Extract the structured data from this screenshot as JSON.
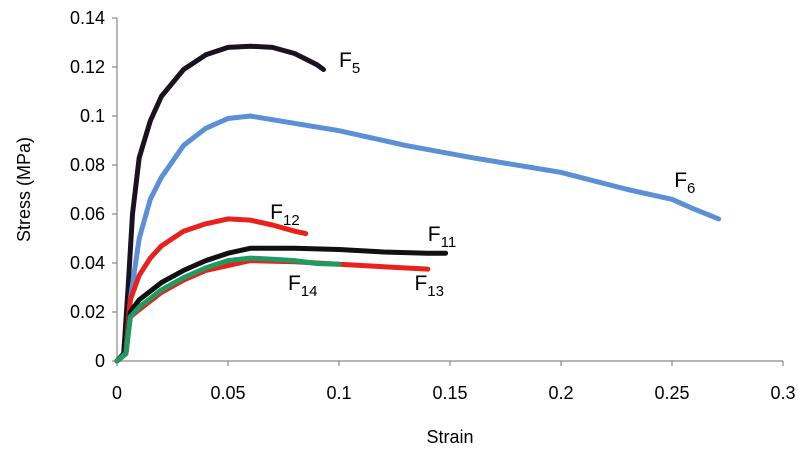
{
  "chart_data": {
    "type": "line",
    "title": "",
    "xlabel": "Strain",
    "ylabel": "Stress (MPa)",
    "xlim": [
      0,
      0.3
    ],
    "ylim": [
      0,
      0.14
    ],
    "xticks": [
      0,
      0.05,
      0.1,
      0.15,
      0.2,
      0.25,
      0.3
    ],
    "yticks": [
      0,
      0.02,
      0.04,
      0.06,
      0.08,
      0.1,
      0.12,
      0.14
    ],
    "xtick_labels": [
      "0",
      "0.05",
      "0.1",
      "0.15",
      "0.2",
      "0.25",
      "0.3"
    ],
    "ytick_labels": [
      "0",
      "0.02",
      "0.04",
      "0.06",
      "0.08",
      "0.1",
      "0.12",
      "0.14"
    ],
    "grid": false,
    "legend": "none",
    "series": [
      {
        "name": "F5",
        "label_main": "F",
        "label_sub": "5",
        "label_at": [
          0.1,
          0.12
        ],
        "color": "#1a1220",
        "x": [
          0,
          0.003,
          0.005,
          0.007,
          0.01,
          0.015,
          0.02,
          0.03,
          0.04,
          0.05,
          0.06,
          0.07,
          0.08,
          0.09,
          0.093
        ],
        "y": [
          0,
          0.003,
          0.03,
          0.06,
          0.083,
          0.098,
          0.108,
          0.119,
          0.125,
          0.128,
          0.1285,
          0.128,
          0.1255,
          0.121,
          0.119
        ]
      },
      {
        "name": "F6",
        "label_main": "F",
        "label_sub": "6",
        "label_at": [
          0.251,
          0.071
        ],
        "color": "#5b8fd6",
        "x": [
          0,
          0.004,
          0.006,
          0.01,
          0.015,
          0.02,
          0.03,
          0.04,
          0.05,
          0.06,
          0.07,
          0.1,
          0.13,
          0.16,
          0.2,
          0.23,
          0.25,
          0.26,
          0.271
        ],
        "y": [
          0,
          0.003,
          0.025,
          0.05,
          0.066,
          0.075,
          0.088,
          0.095,
          0.099,
          0.1,
          0.0985,
          0.094,
          0.088,
          0.083,
          0.077,
          0.07,
          0.066,
          0.062,
          0.058
        ]
      },
      {
        "name": "F12",
        "label_main": "F",
        "label_sub": "12",
        "label_at": [
          0.069,
          0.058
        ],
        "color": "#e8221a",
        "x": [
          0,
          0.004,
          0.006,
          0.01,
          0.015,
          0.02,
          0.03,
          0.04,
          0.05,
          0.06,
          0.07,
          0.08,
          0.085
        ],
        "y": [
          0,
          0.003,
          0.025,
          0.035,
          0.042,
          0.047,
          0.053,
          0.056,
          0.058,
          0.0575,
          0.0555,
          0.053,
          0.052
        ]
      },
      {
        "name": "F11",
        "label_main": "F",
        "label_sub": "11",
        "label_at": [
          0.14,
          0.049
        ],
        "color": "#101010",
        "x": [
          0,
          0.004,
          0.006,
          0.01,
          0.02,
          0.03,
          0.04,
          0.05,
          0.06,
          0.08,
          0.1,
          0.12,
          0.14,
          0.148
        ],
        "y": [
          0,
          0.003,
          0.02,
          0.025,
          0.032,
          0.037,
          0.041,
          0.044,
          0.046,
          0.046,
          0.0455,
          0.0445,
          0.044,
          0.044
        ]
      },
      {
        "name": "F13",
        "label_main": "F",
        "label_sub": "13",
        "label_at": [
          0.134,
          0.029
        ],
        "color": "#e8221a",
        "x": [
          0,
          0.004,
          0.006,
          0.01,
          0.02,
          0.03,
          0.04,
          0.05,
          0.06,
          0.08,
          0.1,
          0.12,
          0.14
        ],
        "y": [
          0,
          0.003,
          0.018,
          0.021,
          0.028,
          0.033,
          0.037,
          0.039,
          0.041,
          0.0405,
          0.0395,
          0.0385,
          0.0375
        ]
      },
      {
        "name": "F14",
        "label_main": "F",
        "label_sub": "14",
        "label_at": [
          0.077,
          0.029
        ],
        "color": "#1e9a63",
        "x": [
          0,
          0.004,
          0.006,
          0.01,
          0.02,
          0.03,
          0.04,
          0.05,
          0.06,
          0.07,
          0.08,
          0.09,
          0.1
        ],
        "y": [
          0,
          0.003,
          0.018,
          0.022,
          0.029,
          0.034,
          0.038,
          0.041,
          0.042,
          0.0415,
          0.041,
          0.0398,
          0.0395
        ]
      }
    ]
  }
}
